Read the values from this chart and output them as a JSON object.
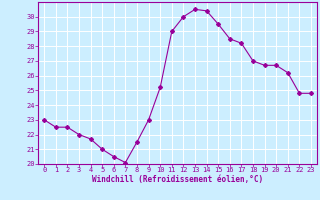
{
  "x": [
    0,
    1,
    2,
    3,
    4,
    5,
    6,
    7,
    8,
    9,
    10,
    11,
    12,
    13,
    14,
    15,
    16,
    17,
    18,
    19,
    20,
    21,
    22,
    23
  ],
  "y": [
    23.0,
    22.5,
    22.5,
    22.0,
    21.7,
    21.0,
    20.5,
    20.1,
    21.5,
    23.0,
    25.2,
    29.0,
    30.0,
    30.5,
    30.4,
    29.5,
    28.5,
    28.2,
    27.0,
    26.7,
    26.7,
    26.2,
    24.8,
    24.8
  ],
  "line_color": "#990099",
  "marker": "D",
  "marker_size": 2.0,
  "bg_color": "#cceeff",
  "grid_color": "#ffffff",
  "xlabel": "Windchill (Refroidissement éolien,°C)",
  "xlabel_color": "#990099",
  "tick_color": "#990099",
  "ylim": [
    20,
    31
  ],
  "xlim": [
    -0.5,
    23.5
  ],
  "yticks": [
    20,
    21,
    22,
    23,
    24,
    25,
    26,
    27,
    28,
    29,
    30
  ],
  "xticks": [
    0,
    1,
    2,
    3,
    4,
    5,
    6,
    7,
    8,
    9,
    10,
    11,
    12,
    13,
    14,
    15,
    16,
    17,
    18,
    19,
    20,
    21,
    22,
    23
  ],
  "xtick_labels": [
    "0",
    "1",
    "2",
    "3",
    "4",
    "5",
    "6",
    "7",
    "8",
    "9",
    "10",
    "11",
    "12",
    "13",
    "14",
    "15",
    "16",
    "17",
    "18",
    "19",
    "20",
    "21",
    "22",
    "23"
  ],
  "spine_color": "#990099",
  "tick_fontsize": 5.0,
  "xlabel_fontsize": 5.5,
  "linewidth": 0.8
}
